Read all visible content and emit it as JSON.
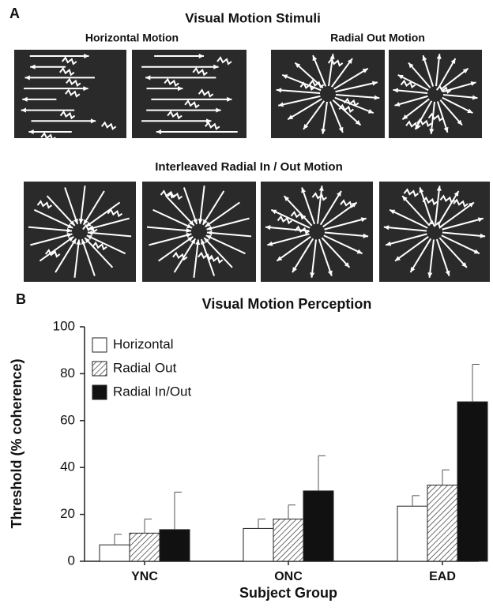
{
  "panel_a": {
    "label": "A",
    "title": "Visual Motion Stimuli",
    "subtitles": [
      "Horizontal Motion",
      "Radial Out Motion",
      "Interleaved Radial In / Out Motion"
    ]
  },
  "chart_data": {
    "type": "bar",
    "panel_label": "B",
    "title": "Visual Motion Perception",
    "x_label": "Subject Group",
    "y_label": "Threshold (% coherence)",
    "categories": [
      "YNC",
      "ONC",
      "EAD"
    ],
    "series": [
      {
        "name": "Horizontal",
        "color": "#ffffff",
        "hatch": false,
        "values": [
          7,
          14,
          23.5
        ],
        "errors": [
          4.5,
          4,
          4.5
        ]
      },
      {
        "name": "Radial Out",
        "color": "#ffffff",
        "hatch": true,
        "values": [
          12,
          18,
          32.5
        ],
        "errors": [
          6,
          6,
          6.5
        ]
      },
      {
        "name": "Radial In/Out",
        "color": "#111111",
        "hatch": false,
        "values": [
          13.5,
          30,
          68
        ],
        "errors": [
          16,
          15,
          16
        ]
      }
    ],
    "ylim": [
      0,
      100
    ],
    "yticks": [
      0,
      20,
      40,
      60,
      80,
      100
    ],
    "legend": "upper left",
    "grid": false
  }
}
